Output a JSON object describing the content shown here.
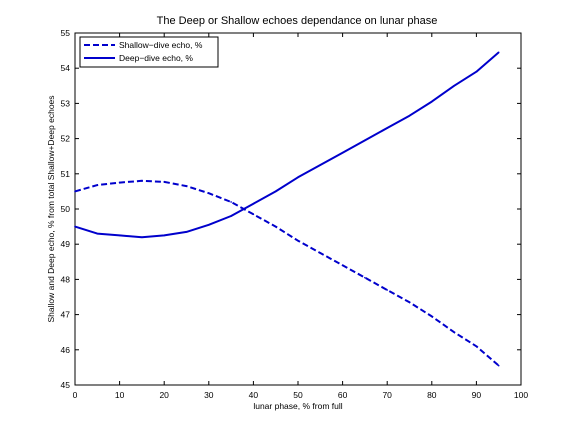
{
  "chart_data": {
    "type": "line",
    "title": "The Deep or Shallow echoes dependance on lunar phase",
    "xlabel": "lunar phase, % from full",
    "ylabel": "Shallow and Deep echo, % from total Shallow+Deep echoes",
    "xlim": [
      0,
      100
    ],
    "ylim": [
      45,
      55
    ],
    "xticks": [
      0,
      10,
      20,
      30,
      40,
      50,
      60,
      70,
      80,
      90,
      100
    ],
    "yticks": [
      45,
      46,
      47,
      48,
      49,
      50,
      51,
      52,
      53,
      54,
      55
    ],
    "grid": false,
    "legend_position": "top-left",
    "series": [
      {
        "name": "Shallow−dive echo, %",
        "color": "#0000cc",
        "style": "dashed",
        "x": [
          0,
          5,
          10,
          15,
          20,
          25,
          30,
          35,
          40,
          45,
          50,
          55,
          60,
          65,
          70,
          75,
          80,
          85,
          90,
          95
        ],
        "y": [
          50.5,
          50.68,
          50.75,
          50.8,
          50.77,
          50.65,
          50.45,
          50.2,
          49.85,
          49.5,
          49.1,
          48.75,
          48.4,
          48.05,
          47.7,
          47.35,
          46.95,
          46.5,
          46.1,
          45.55
        ]
      },
      {
        "name": "Deep−dive echo, %",
        "color": "#0000cc",
        "style": "solid",
        "x": [
          0,
          5,
          10,
          15,
          20,
          25,
          30,
          35,
          40,
          45,
          50,
          55,
          60,
          65,
          70,
          75,
          80,
          85,
          90,
          95
        ],
        "y": [
          49.5,
          49.3,
          49.25,
          49.2,
          49.25,
          49.35,
          49.55,
          49.8,
          50.15,
          50.5,
          50.9,
          51.25,
          51.6,
          51.95,
          52.3,
          52.65,
          53.05,
          53.5,
          53.9,
          54.45
        ]
      }
    ]
  }
}
